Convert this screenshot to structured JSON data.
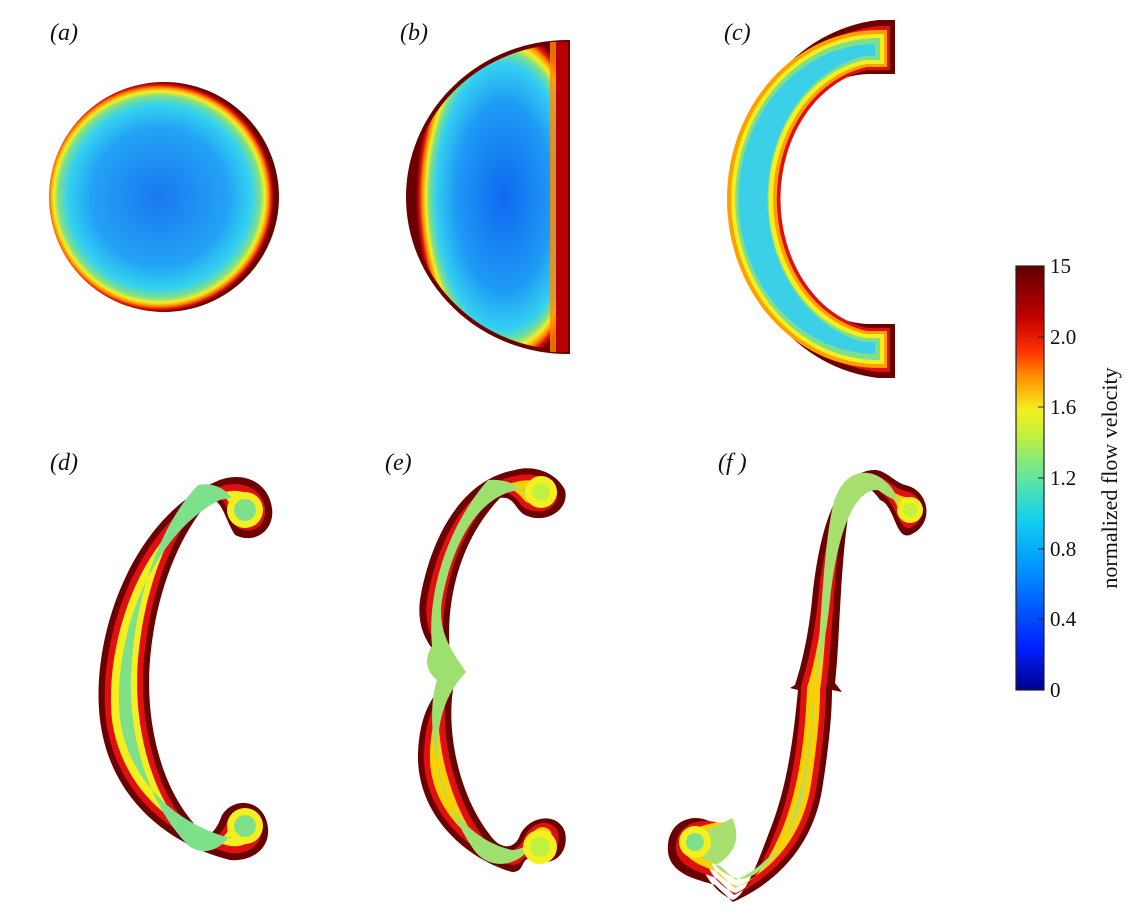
{
  "panels": [
    {
      "id": "a",
      "label": "(a)"
    },
    {
      "id": "b",
      "label": "(b)"
    },
    {
      "id": "c",
      "label": "(c)"
    },
    {
      "id": "d",
      "label": "(d)"
    },
    {
      "id": "e",
      "label": "(e)"
    },
    {
      "id": "f",
      "label": "(f )"
    }
  ],
  "colorbar": {
    "label": "normalized flow velocity",
    "ticks": [
      "15",
      "2.0",
      "1.6",
      "1.2",
      "0.8",
      "0.4",
      "0"
    ],
    "colors": {
      "dark_blue": "#00008f",
      "blue": "#0060ff",
      "sky": "#00b4ff",
      "cyan": "#20e0e0",
      "green": "#7ee08a",
      "yellow": "#f4f020",
      "orange": "#ff8c00",
      "red": "#e01010",
      "dark_red": "#6b0000"
    }
  }
}
